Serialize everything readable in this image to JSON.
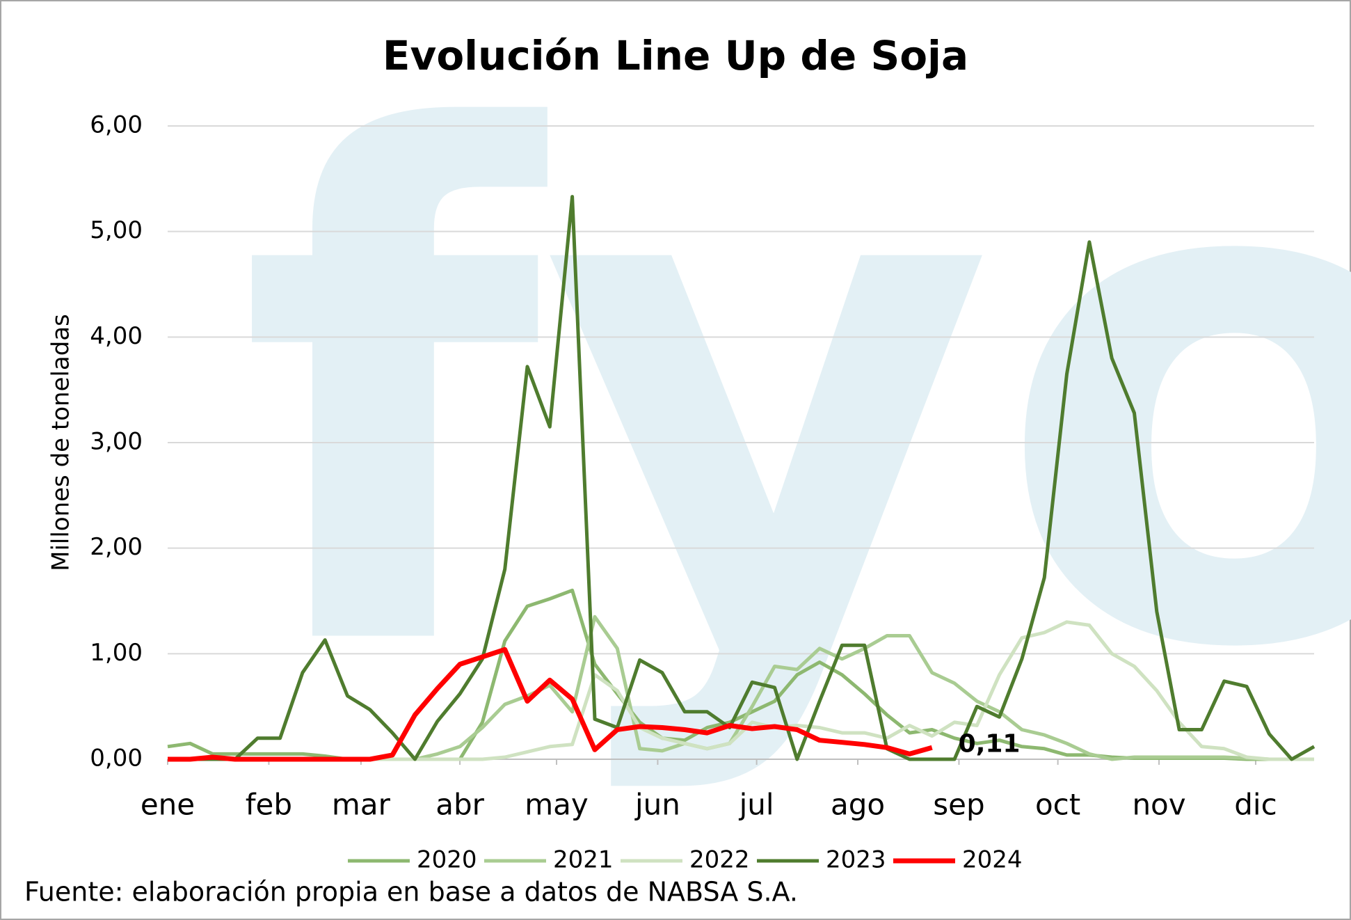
{
  "chart_data": {
    "type": "line",
    "title": "Evolución Line Up de Soja",
    "y_label": "Millones de toneladas",
    "source": "Fuente: elaboración propia en base a datos de NABSA S.A.",
    "watermark": "fyo",
    "annotation": "0,11",
    "x": [
      1,
      2,
      3,
      4,
      5,
      6,
      7,
      8,
      9,
      10,
      11,
      12,
      13,
      14,
      15,
      16,
      17,
      18,
      19,
      20,
      21,
      22,
      23,
      24,
      25,
      26,
      27,
      28,
      29,
      30,
      31,
      32,
      33,
      34,
      35,
      36,
      37,
      38,
      39,
      40,
      41,
      42,
      43,
      44,
      45,
      46,
      47,
      48,
      49,
      50,
      51,
      52
    ],
    "xlim": [
      1,
      52
    ],
    "xticks": [
      {
        "value": 1,
        "label": "ene"
      },
      {
        "value": 5.5,
        "label": "feb"
      },
      {
        "value": 9.6,
        "label": "mar"
      },
      {
        "value": 14.0,
        "label": "abr"
      },
      {
        "value": 18.3,
        "label": "may"
      },
      {
        "value": 22.8,
        "label": "jun"
      },
      {
        "value": 27.2,
        "label": "jul"
      },
      {
        "value": 31.7,
        "label": "ago"
      },
      {
        "value": 36.2,
        "label": "sep"
      },
      {
        "value": 40.6,
        "label": "oct"
      },
      {
        "value": 45.1,
        "label": "nov"
      },
      {
        "value": 49.4,
        "label": "dic"
      }
    ],
    "ylim": [
      0,
      6
    ],
    "yticks": [
      {
        "value": 0,
        "label": "0,00"
      },
      {
        "value": 1,
        "label": "1,00"
      },
      {
        "value": 2,
        "label": "2,00"
      },
      {
        "value": 3,
        "label": "3,00"
      },
      {
        "value": 4,
        "label": "4,00"
      },
      {
        "value": 5,
        "label": "5,00"
      },
      {
        "value": 6,
        "label": "6,00"
      }
    ],
    "grid": true,
    "legend": "bottom",
    "series": [
      {
        "name": "2020",
        "color": "#8db870",
        "values": [
          0.12,
          0.15,
          0.05,
          0.05,
          0.05,
          0.05,
          0.05,
          0.03,
          0,
          0,
          0,
          0,
          0,
          0,
          0.35,
          1.12,
          1.45,
          1.52,
          1.6,
          0.9,
          0.62,
          0.35,
          0.2,
          0.18,
          0.3,
          0.35,
          0.45,
          0.55,
          0.8,
          0.92,
          0.8,
          0.62,
          0.42,
          0.25,
          0.28,
          0.2,
          0.15,
          0.18,
          0.12,
          0.1,
          0.04,
          0.04,
          0.02,
          0.01,
          0.01,
          0.01,
          0.01,
          0.01,
          0,
          0,
          0,
          0
        ]
      },
      {
        "name": "2021",
        "color": "#a9cc92",
        "values": [
          0,
          0,
          0,
          0,
          0,
          0,
          0,
          0,
          0,
          0,
          0,
          0,
          0.05,
          0.12,
          0.3,
          0.52,
          0.6,
          0.7,
          0.45,
          1.35,
          1.05,
          0.1,
          0.08,
          0.15,
          0.1,
          0.15,
          0.5,
          0.88,
          0.85,
          1.05,
          0.95,
          1.05,
          1.17,
          1.17,
          0.82,
          0.72,
          0.55,
          0.45,
          0.28,
          0.23,
          0.15,
          0.05,
          0,
          0.02,
          0.02,
          0.02,
          0.02,
          0.02,
          0.01,
          0,
          0,
          0
        ]
      },
      {
        "name": "2022",
        "color": "#cfe2c1",
        "values": [
          0,
          0,
          0,
          0,
          0,
          0,
          0,
          0,
          0,
          0,
          0,
          0,
          0,
          0,
          0,
          0.02,
          0.07,
          0.12,
          0.14,
          0.8,
          0.65,
          0.3,
          0.2,
          0.15,
          0.1,
          0.15,
          0.35,
          0.3,
          0.32,
          0.3,
          0.25,
          0.25,
          0.2,
          0.32,
          0.22,
          0.35,
          0.32,
          0.8,
          1.15,
          1.2,
          1.3,
          1.27,
          1.0,
          0.88,
          0.65,
          0.35,
          0.12,
          0.1,
          0.02,
          0,
          0,
          0
        ]
      },
      {
        "name": "2023",
        "color": "#4f7c2e",
        "values": [
          0,
          0,
          0,
          0,
          0.2,
          0.2,
          0.82,
          1.13,
          0.6,
          0.47,
          0.25,
          0,
          0.36,
          0.62,
          0.95,
          1.8,
          3.72,
          3.15,
          5.33,
          0.38,
          0.3,
          0.94,
          0.82,
          0.45,
          0.45,
          0.3,
          0.73,
          0.68,
          0,
          0.55,
          1.08,
          1.08,
          0.1,
          0,
          0,
          0,
          0.5,
          0.4,
          0.95,
          1.72,
          3.65,
          4.9,
          3.8,
          3.28,
          1.4,
          0.28,
          0.28,
          0.74,
          0.69,
          0.24,
          0,
          0.12
        ]
      },
      {
        "name": "2024",
        "color": "#ff0000",
        "values": [
          0,
          0,
          0.02,
          0,
          0,
          0,
          0,
          0,
          0,
          0,
          0.04,
          0.42,
          0.67,
          0.9,
          0.97,
          1.04,
          0.55,
          0.75,
          0.57,
          0.09,
          0.28,
          0.31,
          0.3,
          0.28,
          0.25,
          0.32,
          0.29,
          0.31,
          0.28,
          0.18,
          0.16,
          0.14,
          0.11,
          0.05,
          0.11,
          null,
          null,
          null,
          null,
          null,
          null,
          null,
          null,
          null,
          null,
          null,
          null,
          null,
          null,
          null,
          null,
          null
        ]
      }
    ]
  }
}
